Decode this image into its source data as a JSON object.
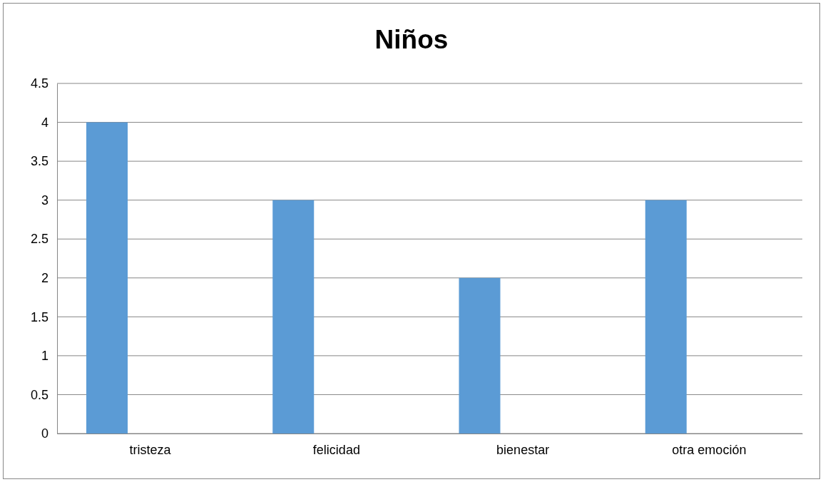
{
  "chart_data": {
    "type": "bar",
    "title": "Niños",
    "categories": [
      "tristeza",
      "felicidad",
      "bienestar",
      "otra emoción"
    ],
    "values": [
      4,
      3,
      2,
      3
    ],
    "color": "#5b9bd5",
    "ylim": [
      0,
      4.5
    ],
    "yticks": [
      0,
      0.5,
      1,
      1.5,
      2,
      2.5,
      3,
      3.5,
      4,
      4.5
    ],
    "grid": "y"
  }
}
